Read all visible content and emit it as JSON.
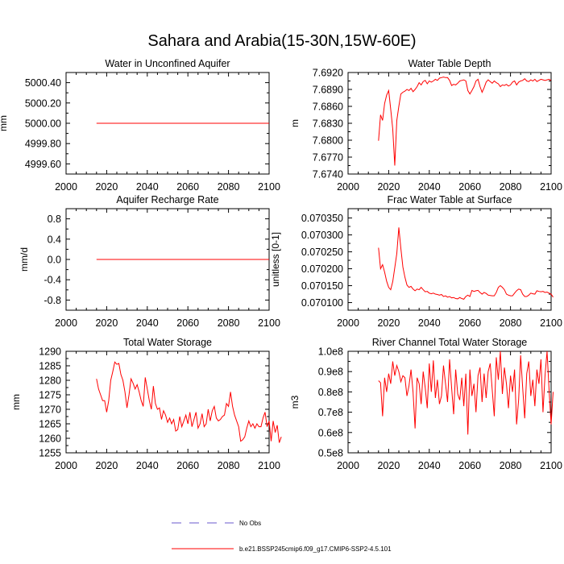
{
  "figure": {
    "title": "Sahara and Arabia(15-30N,15W-60E)",
    "legend": [
      {
        "label": "No Obs",
        "color": "#6a5acd",
        "dash": true
      },
      {
        "label": "b.e21.BSSP245cmip6.f09_g17.CMIP6-SSP2-4.5.101",
        "color": "#ff0000",
        "dash": false
      }
    ],
    "line_color": "#ff0000"
  },
  "chart_data": [
    {
      "type": "line",
      "title": "Water in Unconfined Aquifer",
      "ylabel": "mm",
      "xlim": [
        2000,
        2100
      ],
      "xticks": [
        2000,
        2020,
        2040,
        2060,
        2080,
        2100
      ],
      "xtick_labels": [
        "2000",
        "2020",
        "2040",
        "2060",
        "2080",
        "2100"
      ],
      "ylim": [
        4999.5,
        5000.5
      ],
      "yticks": [
        4999.6,
        4999.8,
        5000.0,
        5000.2,
        5000.4
      ],
      "ytick_labels": [
        "4999.60",
        "4999.80",
        "5000.00",
        "5000.20",
        "5000.40"
      ],
      "series": [
        {
          "x": [
            2015,
            2100
          ],
          "values": [
            5000.0,
            5000.0
          ]
        }
      ]
    },
    {
      "type": "line",
      "title": "Water Table Depth",
      "ylabel": "m",
      "xlim": [
        2000,
        2100
      ],
      "xticks": [
        2000,
        2020,
        2040,
        2060,
        2080,
        2100
      ],
      "xtick_labels": [
        "2000",
        "2020",
        "2040",
        "2060",
        "2080",
        "2100"
      ],
      "ylim": [
        7.674,
        7.692
      ],
      "yticks": [
        7.674,
        7.677,
        7.68,
        7.683,
        7.686,
        7.689,
        7.692
      ],
      "ytick_labels": [
        "7.6740",
        "7.6770",
        "7.6800",
        "7.6830",
        "7.6860",
        "7.6890",
        "7.6920"
      ],
      "series": [
        {
          "x0": 2015,
          "values": [
            7.6799,
            7.6845,
            7.6835,
            7.6865,
            7.688,
            7.6888,
            7.6855,
            7.682,
            7.6755,
            7.6835,
            7.686,
            7.6882,
            7.6885,
            7.6887,
            7.689,
            7.6888,
            7.6892,
            7.6886,
            7.689,
            7.6895,
            7.6902,
            7.6898,
            7.6904,
            7.6906,
            7.69,
            7.6905,
            7.6903,
            7.6905,
            7.6908,
            7.6906,
            7.691,
            7.6911,
            7.6912,
            7.6911,
            7.6911,
            7.6906,
            7.6897,
            7.6899,
            7.6898,
            7.6901,
            7.6905,
            7.6906,
            7.6907,
            7.6905,
            7.6888,
            7.6882,
            7.6888,
            7.6895,
            7.6905,
            7.6908,
            7.6895,
            7.6885,
            7.6893,
            7.6903,
            7.6907,
            7.6904,
            7.6901,
            7.6905,
            7.6902,
            7.69,
            7.6895,
            7.6898,
            7.6897,
            7.6899,
            7.6896,
            7.6898,
            7.6903,
            7.6905,
            7.6898,
            7.6903,
            7.6905,
            7.6906,
            7.6909,
            7.6905,
            7.6904,
            7.6907,
            7.6905,
            7.6908,
            7.6904,
            7.6906,
            7.6908,
            7.6907,
            7.6906,
            7.6907,
            7.6908,
            7.6906
          ]
        }
      ]
    },
    {
      "type": "line",
      "title": "Aquifer Recharge Rate",
      "ylabel": "mm/d",
      "xlim": [
        2000,
        2100
      ],
      "xticks": [
        2000,
        2020,
        2040,
        2060,
        2080,
        2100
      ],
      "xtick_labels": [
        "2000",
        "2020",
        "2040",
        "2060",
        "2080",
        "2100"
      ],
      "ylim": [
        -1.0,
        1.0
      ],
      "yticks": [
        -0.8,
        -0.4,
        0.0,
        0.4,
        0.8
      ],
      "ytick_labels": [
        "-0.8",
        "-0.4",
        "0.0",
        "0.4",
        "0.8"
      ],
      "series": [
        {
          "x": [
            2015,
            2100
          ],
          "values": [
            0.0,
            0.0
          ]
        }
      ]
    },
    {
      "type": "line",
      "title": "Frac Water Table at Surface",
      "ylabel": "unitless [0-1]",
      "xlim": [
        2000,
        2100
      ],
      "xticks": [
        2000,
        2020,
        2040,
        2060,
        2080,
        2100
      ],
      "xtick_labels": [
        "2000",
        "2020",
        "2040",
        "2060",
        "2080",
        "2100"
      ],
      "ylim": [
        0.0700775,
        0.0703775
      ],
      "yticks": [
        0.0701,
        0.07015,
        0.0702,
        0.07025,
        0.0703,
        0.07035
      ],
      "ytick_labels": [
        "0.070100",
        "0.070150",
        "0.070200",
        "0.070250",
        "0.070300",
        "0.070350"
      ],
      "series": [
        {
          "x0": 2015,
          "values": [
            0.070262,
            0.0702,
            0.070212,
            0.07019,
            0.070163,
            0.070145,
            0.070138,
            0.070162,
            0.070203,
            0.070245,
            0.070322,
            0.07026,
            0.070205,
            0.070175,
            0.070152,
            0.070145,
            0.070148,
            0.07014,
            0.070135,
            0.07014,
            0.070138,
            0.070145,
            0.070138,
            0.070132,
            0.070133,
            0.070128,
            0.070126,
            0.070128,
            0.070125,
            0.070124,
            0.070122,
            0.070124,
            0.070118,
            0.07012,
            0.070116,
            0.070118,
            0.070114,
            0.070115,
            0.070112,
            0.070111,
            0.070115,
            0.070112,
            0.07011,
            0.070118,
            0.070122,
            0.070118,
            0.070136,
            0.070133,
            0.070135,
            0.070136,
            0.07013,
            0.070125,
            0.07013,
            0.070127,
            0.070122,
            0.070121,
            0.07012,
            0.07012,
            0.07013,
            0.070145,
            0.07015,
            0.070145,
            0.070138,
            0.070125,
            0.070122,
            0.07012,
            0.07012,
            0.070128,
            0.070135,
            0.07014,
            0.070138,
            0.070125,
            0.070118,
            0.070118,
            0.070122,
            0.070128,
            0.070126,
            0.070125,
            0.070135,
            0.070133,
            0.070132,
            0.070133,
            0.07013,
            0.070131,
            0.070128,
            0.070125,
            0.070116
          ]
        }
      ]
    },
    {
      "type": "line",
      "title": "Total Water Storage",
      "ylabel": "mm",
      "xlim": [
        2000,
        2100
      ],
      "xticks": [
        2000,
        2020,
        2040,
        2060,
        2080,
        2100
      ],
      "xtick_labels": [
        "2000",
        "2020",
        "2040",
        "2060",
        "2080",
        "2100"
      ],
      "ylim": [
        1255,
        1290
      ],
      "yticks": [
        1255,
        1260,
        1265,
        1270,
        1275,
        1280,
        1285,
        1290
      ],
      "ytick_labels": [
        "1255",
        "1260",
        "1265",
        "1270",
        "1275",
        "1280",
        "1285",
        "1290"
      ],
      "series": [
        {
          "x0": 2015,
          "values": [
            1280.5,
            1277,
            1275,
            1273,
            1273,
            1269,
            1273,
            1280,
            1283,
            1286.3,
            1285.5,
            1285.8,
            1282,
            1280,
            1276,
            1270.5,
            1275,
            1280.5,
            1279,
            1277,
            1278.5,
            1276,
            1273,
            1271,
            1281,
            1277,
            1273,
            1270,
            1278,
            1272,
            1270,
            1270.5,
            1266.5,
            1269.5,
            1268,
            1265.5,
            1267,
            1265,
            1266.5,
            1262.5,
            1263,
            1267.5,
            1264,
            1266,
            1268,
            1265,
            1269,
            1264,
            1266.5,
            1269,
            1263.5,
            1265,
            1268.5,
            1264,
            1265,
            1270,
            1266,
            1269.5,
            1271,
            1267,
            1266,
            1266.5,
            1267.5,
            1268,
            1272,
            1271,
            1276,
            1271,
            1268,
            1266,
            1264,
            1259,
            1259.5,
            1260.5,
            1263.5,
            1266,
            1264,
            1265,
            1263.5,
            1265,
            1264,
            1264,
            1267,
            1269,
            1264,
            1266,
            1259,
            1266,
            1262,
            1264.5,
            1258.5,
            1260.5
          ]
        }
      ]
    },
    {
      "type": "line",
      "title": "River Channel Total Water Storage",
      "ylabel": "m3",
      "xlim": [
        2000,
        2100
      ],
      "xticks": [
        2000,
        2020,
        2040,
        2060,
        2080,
        2100
      ],
      "xtick_labels": [
        "2000",
        "2020",
        "2040",
        "2060",
        "2080",
        "2100"
      ],
      "ylim": [
        50000000,
        100000000
      ],
      "yticks": [
        50000000,
        60000000,
        70000000,
        80000000,
        90000000,
        100000000
      ],
      "ytick_labels": [
        "0.5e8",
        "0.6e8",
        "0.7e8",
        "0.8e8",
        "0.9e8",
        "1.0e8"
      ],
      "series": [
        {
          "x0": 2015,
          "values": [
            85500000,
            84500000,
            68000000,
            87000000,
            80000000,
            89000000,
            84000000,
            95000000,
            88000000,
            93000000,
            90000000,
            85000000,
            88000000,
            87000000,
            78000000,
            83000000,
            91000000,
            80000000,
            62000000,
            87000000,
            84000000,
            74000000,
            90000000,
            82000000,
            72000000,
            94000000,
            80000000,
            95500000,
            77000000,
            86000000,
            74000000,
            78000000,
            93000000,
            84000000,
            75000000,
            96000000,
            82000000,
            69000000,
            91000000,
            79000000,
            76000000,
            87000000,
            73000000,
            89000000,
            59000000,
            91000000,
            78000000,
            84000000,
            70000000,
            88000000,
            92000000,
            75000000,
            89000000,
            77000000,
            90000000,
            94000000,
            81000000,
            68000000,
            97000000,
            86000000,
            100000000,
            79000000,
            92000000,
            84000000,
            72000000,
            88000000,
            80000000,
            91000000,
            64000000,
            76000000,
            98000000,
            82000000,
            67000000,
            89000000,
            95000000,
            78000000,
            86000000,
            73000000,
            91000000,
            84000000,
            96000000,
            70000000,
            88000000,
            100000000,
            81000000,
            64000000,
            80000000
          ]
        }
      ]
    }
  ]
}
